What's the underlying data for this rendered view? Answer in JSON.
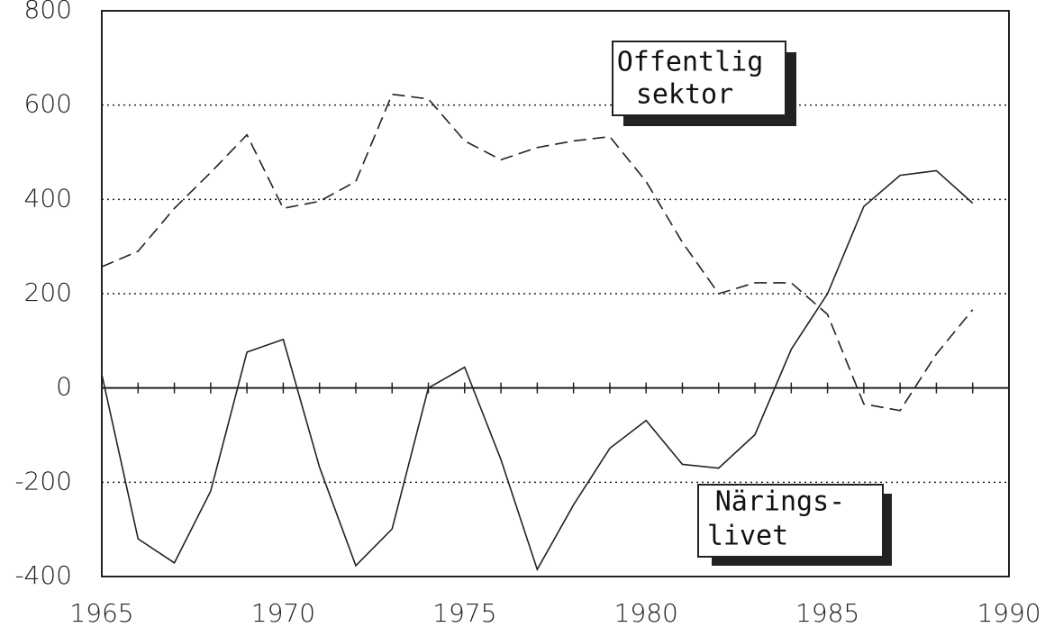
{
  "chart_data": {
    "type": "line",
    "x": [
      1965,
      1966,
      1967,
      1968,
      1969,
      1970,
      1971,
      1972,
      1973,
      1974,
      1975,
      1976,
      1977,
      1978,
      1979,
      1980,
      1981,
      1982,
      1983,
      1984,
      1985,
      1986,
      1987,
      1988,
      1989
    ],
    "series": [
      {
        "color": "#222",
        "dash": true,
        "values": [
          257,
          290,
          381,
          457,
          537,
          381,
          396,
          438,
          623,
          613,
          524,
          484,
          510,
          524,
          533,
          438,
          309,
          200,
          223,
          223,
          156,
          -34,
          -48,
          72,
          166
        ]
      },
      {
        "color": "#222",
        "dash": false,
        "values": [
          29,
          -320,
          -371,
          -219,
          76,
          103,
          -168,
          -377,
          -299,
          0,
          44,
          -152,
          -385,
          -248,
          -128,
          -69,
          -162,
          -170,
          -99,
          82,
          200,
          385,
          451,
          461,
          392
        ]
      }
    ],
    "annotations": [
      {
        "lines": [
          "Offentlig",
          "sektor"
        ]
      },
      {
        "lines": [
          "Närings-",
          "livet"
        ]
      }
    ],
    "xlim": [
      1965,
      1990
    ],
    "xticks": [
      1965,
      1970,
      1975,
      1980,
      1985,
      1990
    ],
    "ylim": [
      -400,
      800
    ],
    "yticks": [
      -400,
      -200,
      0,
      200,
      400,
      600,
      800
    ],
    "grid": true
  }
}
